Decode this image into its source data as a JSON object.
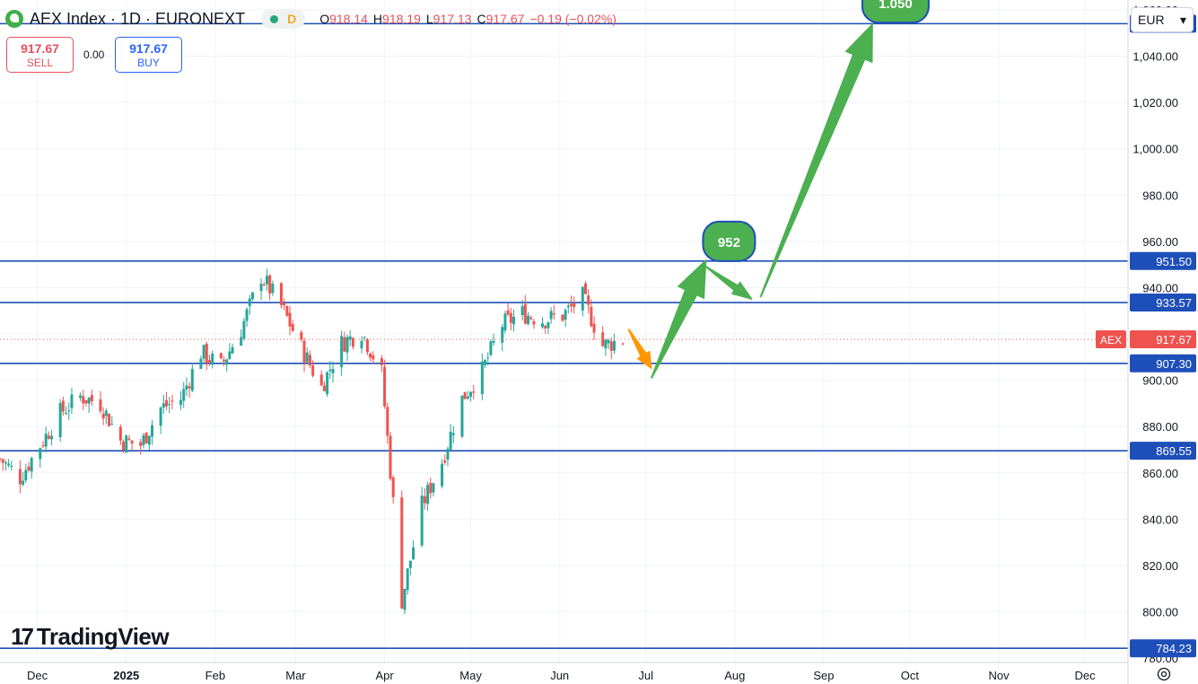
{
  "header": {
    "title": "AEX Index · 1D · EURONEXT",
    "badge": "D",
    "ohlc": [
      {
        "k": "O",
        "v": "918.14"
      },
      {
        "k": "H",
        "v": "918.19"
      },
      {
        "k": "L",
        "v": "917.13"
      },
      {
        "k": "C",
        "v": "917.67"
      },
      {
        "k": "",
        "v": "−0.19 (−0.02%)"
      }
    ]
  },
  "trade": {
    "sell_price": "917.67",
    "sell_label": "SELL",
    "spread": "0.00",
    "buy_price": "917.67",
    "buy_label": "BUY"
  },
  "currency": "EUR",
  "brand": "TradingView",
  "colors": {
    "up": "#26a69a",
    "down": "#ef5350",
    "level": "#1e4fb8",
    "arrow_green": "#4caf50",
    "arrow_orange": "#ff9800",
    "price_tag": "#ef5350"
  },
  "chart_data": {
    "type": "candlestick",
    "symbol": "AEX",
    "last_price": 917.67,
    "y_range": [
      775,
      1072
    ],
    "y_ticks": [
      780,
      800,
      820,
      840,
      860,
      880,
      900,
      920,
      940,
      960,
      980,
      1000,
      1020,
      1040,
      1060
    ],
    "y_tick_labels": [
      "780.00",
      "800.00",
      "820.00",
      "840.00",
      "860.00",
      "880.00",
      "900.00",
      "920.00",
      "940.00",
      "960.00",
      "980.00",
      "1,000.00",
      "1,020.00",
      "1,040.00",
      "1,060.00"
    ],
    "x_labels": [
      {
        "label": "Dec",
        "date": "2024-12-01"
      },
      {
        "label": "2025",
        "date": "2025-01-01"
      },
      {
        "label": "Feb",
        "date": "2025-02-01"
      },
      {
        "label": "Mar",
        "date": "2025-03-01"
      },
      {
        "label": "Apr",
        "date": "2025-04-01"
      },
      {
        "label": "May",
        "date": "2025-05-01"
      },
      {
        "label": "Jun",
        "date": "2025-06-01"
      },
      {
        "label": "Jul",
        "date": "2025-07-01"
      },
      {
        "label": "Aug",
        "date": "2025-08-01"
      },
      {
        "label": "Sep",
        "date": "2025-09-01"
      },
      {
        "label": "Oct",
        "date": "2025-10-01"
      },
      {
        "label": "Nov",
        "date": "2025-11-01"
      },
      {
        "label": "Dec",
        "date": "2025-12-01"
      }
    ],
    "horizontal_levels": [
      1054.02,
      951.5,
      933.57,
      907.3,
      869.55,
      784.23
    ],
    "level_labels": [
      "1,054.02",
      "951.50",
      "933.57",
      "907.30",
      "869.55",
      "784.23"
    ],
    "close_path": [
      [
        "2024-11-18",
        866
      ],
      [
        "2024-11-25",
        858
      ],
      [
        "2024-12-02",
        872
      ],
      [
        "2024-12-09",
        886
      ],
      [
        "2024-12-16",
        893
      ],
      [
        "2024-12-23",
        890
      ],
      [
        "2024-12-30",
        874
      ],
      [
        "2025-01-06",
        872
      ],
      [
        "2025-01-13",
        888
      ],
      [
        "2025-01-20",
        892
      ],
      [
        "2025-01-27",
        912
      ],
      [
        "2025-02-03",
        906
      ],
      [
        "2025-02-10",
        922
      ],
      [
        "2025-02-17",
        945
      ],
      [
        "2025-02-24",
        932
      ],
      [
        "2025-03-03",
        914
      ],
      [
        "2025-03-10",
        897
      ],
      [
        "2025-03-17",
        916
      ],
      [
        "2025-03-24",
        921
      ],
      [
        "2025-03-31",
        903
      ],
      [
        "2025-04-07",
        805
      ],
      [
        "2025-04-14",
        846
      ],
      [
        "2025-04-21",
        865
      ],
      [
        "2025-04-28",
        892
      ],
      [
        "2025-05-05",
        904
      ],
      [
        "2025-05-12",
        924
      ],
      [
        "2025-05-19",
        929
      ],
      [
        "2025-05-26",
        926
      ],
      [
        "2025-06-02",
        928
      ],
      [
        "2025-06-09",
        936
      ],
      [
        "2025-06-16",
        915
      ],
      [
        "2025-06-23",
        917.67
      ]
    ],
    "annotations": [
      {
        "type": "arrow",
        "color": "orange",
        "from": [
          "2025-06-25",
          922
        ],
        "to": [
          "2025-07-03",
          905
        ]
      },
      {
        "type": "arrow",
        "color": "green",
        "from": [
          "2025-07-03",
          901
        ],
        "to": [
          "2025-07-22",
          952
        ]
      },
      {
        "type": "arrow",
        "color": "green",
        "from": [
          "2025-07-22",
          949
        ],
        "to": [
          "2025-08-07",
          935
        ]
      },
      {
        "type": "arrow",
        "color": "green",
        "from": [
          "2025-08-10",
          936
        ],
        "to": [
          "2025-09-18",
          1054
        ]
      },
      {
        "type": "label",
        "text": "952",
        "at": [
          "2025-07-30",
          960
        ]
      },
      {
        "type": "label",
        "text": "1.050",
        "at": [
          "2025-09-26",
          1063
        ]
      }
    ]
  }
}
